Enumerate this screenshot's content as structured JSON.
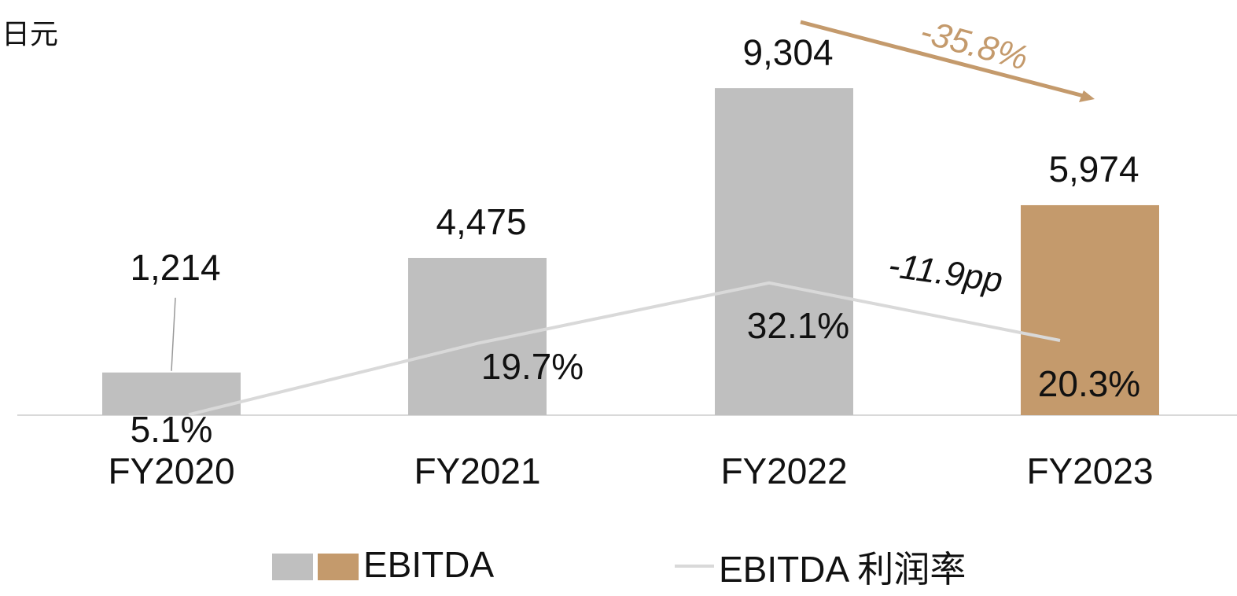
{
  "chart_data": {
    "type": "bar",
    "unit": "日元",
    "categories": [
      "FY2020",
      "FY2021",
      "FY2022",
      "FY2023"
    ],
    "series": [
      {
        "name": "EBITDA",
        "type": "bar",
        "colors": [
          "#bfbfbf",
          "#bfbfbf",
          "#bfbfbf",
          "#c49a6c"
        ],
        "values": [
          1214,
          4475,
          9304,
          5974
        ],
        "value_labels": [
          "1,214",
          "4,475",
          "9,304",
          "5,974"
        ]
      },
      {
        "name": "EBITDA 利润率",
        "type": "line",
        "axis": "y2",
        "color": "#d9d9d9",
        "values": [
          5.1,
          19.7,
          32.1,
          20.3
        ],
        "value_labels": [
          "5.1%",
          "19.7%",
          "32.1%",
          "20.3%"
        ]
      }
    ],
    "ylim": [
      0,
      10000
    ],
    "y2lim": [
      0,
      77
    ],
    "annotations": [
      "-35.8%",
      "-11.9pp"
    ],
    "annotation_color": "#c49a6c",
    "legend_colors": [
      "#bfbfbf",
      "#c49a6c"
    ]
  }
}
